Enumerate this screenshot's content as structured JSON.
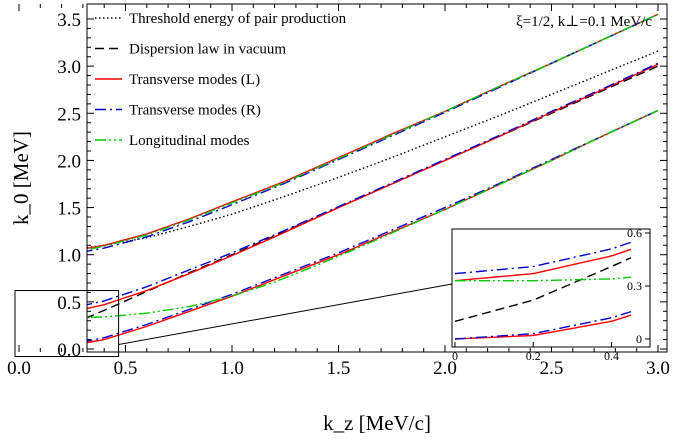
{
  "chart_data": {
    "type": "line",
    "xlabel": "k_z [MeV/c]",
    "ylabel": "k_0 [MeV]",
    "xlim": [
      0.0,
      3.0
    ],
    "ylim": [
      -0.12,
      3.65
    ],
    "xticks": [
      0.0,
      0.5,
      1.0,
      1.5,
      2.0,
      2.5,
      3.0
    ],
    "xtick_labels": [
      "0.0",
      "0.5",
      "1.0",
      "1.5",
      "2.0",
      "2.5",
      "3.0"
    ],
    "yticks": [
      0.0,
      0.5,
      1.0,
      1.5,
      2.0,
      2.5,
      3.0,
      3.5
    ],
    "ytick_labels": [
      "0.0",
      "0.5",
      "1.0",
      "1.5",
      "2.0",
      "2.5",
      "3.0",
      "3.5"
    ],
    "annotation": "ξ=1/2, k⊥=0.1 MeV/c",
    "legend_position": "top-left",
    "series": [
      {
        "name": "Threshold energy of pair production",
        "style": "dotted",
        "color": "#000000",
        "x": [
          0.0,
          0.2,
          0.4,
          0.6,
          0.8,
          1.0,
          1.25,
          1.5,
          1.75,
          2.0,
          2.25,
          2.5,
          2.75,
          3.0
        ],
        "y": [
          1.02,
          1.04,
          1.1,
          1.18,
          1.3,
          1.43,
          1.62,
          1.82,
          2.03,
          2.25,
          2.47,
          2.7,
          2.93,
          3.16
        ]
      },
      {
        "name": "Dispersion law in vacuum",
        "style": "dashed",
        "color": "#000000",
        "x": [
          0.0,
          0.2,
          0.4,
          0.6,
          0.8,
          1.0,
          1.25,
          1.5,
          1.75,
          2.0,
          2.25,
          2.5,
          2.75,
          3.0
        ],
        "y": [
          0.1,
          0.22,
          0.41,
          0.61,
          0.81,
          1.0,
          1.25,
          1.5,
          1.75,
          2.0,
          2.25,
          2.5,
          2.75,
          3.0
        ]
      },
      {
        "name": "Transverse modes (L)",
        "style": "solid",
        "color": "#ff0000",
        "branches": [
          {
            "x": [
              0.0,
              0.2,
              0.4,
              0.6,
              0.8,
              1.0,
              1.25,
              1.5,
              1.75,
              2.0,
              2.25,
              2.5,
              2.75,
              3.0
            ],
            "y": [
              0.0,
              0.02,
              0.1,
              0.24,
              0.4,
              0.56,
              0.78,
              1.0,
              1.24,
              1.48,
              1.74,
              2.0,
              2.27,
              2.53
            ]
          },
          {
            "x": [
              0.0,
              0.2,
              0.4,
              0.6,
              0.8,
              1.0,
              1.25,
              1.5,
              1.75,
              2.0,
              2.25,
              2.5,
              2.75,
              3.0
            ],
            "y": [
              0.33,
              0.37,
              0.47,
              0.62,
              0.8,
              0.99,
              1.24,
              1.5,
              1.75,
              2.0,
              2.25,
              2.51,
              2.76,
              3.02
            ]
          },
          {
            "x": [
              0.0,
              0.2,
              0.4,
              0.6,
              0.8,
              1.0,
              1.25,
              1.5,
              1.75,
              2.0,
              2.25,
              2.5,
              2.75,
              3.0
            ],
            "y": [
              0.99,
              1.02,
              1.1,
              1.22,
              1.38,
              1.56,
              1.78,
              2.03,
              2.28,
              2.52,
              2.78,
              3.03,
              3.29,
              3.55
            ]
          }
        ]
      },
      {
        "name": "Transverse modes (R)",
        "style": "dashdot",
        "color": "#0000cc",
        "branches": [
          {
            "x": [
              0.0,
              0.2,
              0.4,
              0.6,
              0.8,
              1.0,
              1.25,
              1.5,
              1.75,
              2.0,
              2.25,
              2.5,
              2.75,
              3.0
            ],
            "y": [
              0.0,
              0.03,
              0.12,
              0.26,
              0.42,
              0.58,
              0.8,
              1.02,
              1.26,
              1.5,
              1.75,
              2.01,
              2.27,
              2.53
            ]
          },
          {
            "x": [
              0.0,
              0.2,
              0.4,
              0.6,
              0.8,
              1.0,
              1.25,
              1.5,
              1.75,
              2.0,
              2.25,
              2.5,
              2.75,
              3.0
            ],
            "y": [
              0.37,
              0.41,
              0.51,
              0.66,
              0.84,
              1.02,
              1.26,
              1.51,
              1.76,
              2.01,
              2.26,
              2.52,
              2.77,
              3.03
            ]
          },
          {
            "x": [
              0.0,
              0.2,
              0.4,
              0.6,
              0.8,
              1.0,
              1.25,
              1.5,
              1.75,
              2.0,
              2.25,
              2.5,
              2.75,
              3.0
            ],
            "y": [
              0.96,
              0.99,
              1.07,
              1.19,
              1.35,
              1.53,
              1.76,
              2.01,
              2.26,
              2.51,
              2.77,
              3.03,
              3.29,
              3.55
            ]
          }
        ]
      },
      {
        "name": "Longitudinal modes",
        "style": "dashdotdot",
        "color": "#00cc00",
        "branches": [
          {
            "x": [
              0.0,
              0.2,
              0.4,
              0.6,
              0.8,
              1.0,
              1.2,
              1.4,
              1.6,
              1.8,
              2.0,
              2.25,
              2.5,
              2.75,
              3.0
            ],
            "y": [
              0.33,
              0.33,
              0.34,
              0.38,
              0.45,
              0.56,
              0.71,
              0.89,
              1.08,
              1.28,
              1.48,
              1.74,
              2.0,
              2.27,
              2.53
            ]
          },
          {
            "x": [
              0.0,
              0.2,
              0.4,
              0.6,
              0.8,
              1.0,
              1.25,
              1.5,
              1.75,
              2.0,
              2.25,
              2.5,
              2.75,
              3.0
            ],
            "y": [
              0.97,
              1.0,
              1.09,
              1.21,
              1.37,
              1.55,
              1.77,
              2.02,
              2.27,
              2.52,
              2.78,
              3.03,
              3.29,
              3.55
            ]
          }
        ]
      }
    ],
    "inset": {
      "xlim": [
        0.0,
        0.45
      ],
      "ylim": [
        -0.02,
        0.6
      ],
      "xticks": [
        0.0,
        0.2,
        0.4
      ],
      "xtick_labels": [
        "0",
        "0.2",
        "0.4"
      ],
      "yticks": [
        0.0,
        0.3,
        0.6
      ],
      "ytick_labels": [
        "0",
        "0.3",
        "0.6"
      ],
      "zoom_box_x": [
        0.0,
        0.43
      ],
      "zoom_box_y": [
        -0.08,
        0.62
      ]
    }
  }
}
